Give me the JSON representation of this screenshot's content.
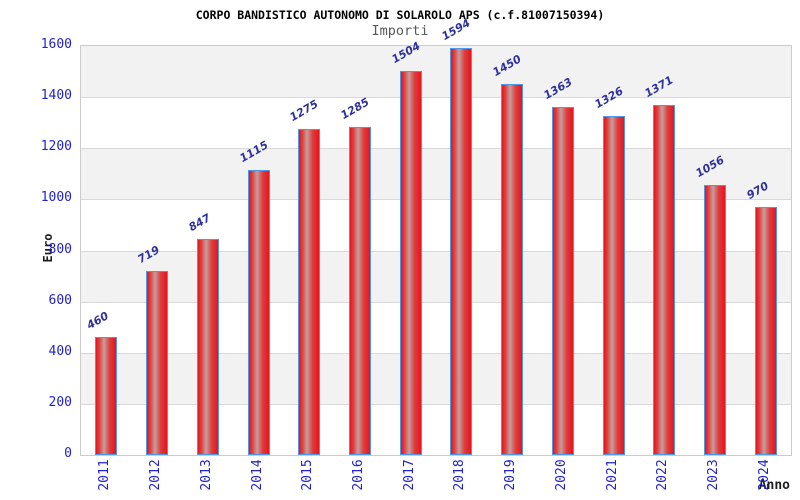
{
  "header": {
    "title": "CORPO BANDISTICO AUTONOMO DI SOLAROLO APS (c.f.81007150394)",
    "subtitle": "Importi"
  },
  "chart_data": {
    "type": "bar",
    "title": "Importi",
    "categories": [
      "2011",
      "2012",
      "2013",
      "2014",
      "2015",
      "2016",
      "2017",
      "2018",
      "2019",
      "2020",
      "2021",
      "2022",
      "2023",
      "2024"
    ],
    "values": [
      460,
      719,
      847,
      1115,
      1275,
      1285,
      1504,
      1594,
      1450,
      1363,
      1326,
      1371,
      1056,
      970
    ],
    "xlabel": "Anno",
    "ylabel": "Euro",
    "ylim": [
      0,
      1600
    ],
    "yticks": [
      0,
      200,
      400,
      600,
      800,
      1000,
      1200,
      1400,
      1600
    ],
    "grid": true,
    "legend_position": "none",
    "colors": {
      "bar_fill_edge": "#e9141c",
      "bar_fill_center": "#c79d9d",
      "bar_border": "#4f97ea",
      "value_label": "#30309c",
      "tick_label": "#2222cc",
      "band_gray": "#f2f2f2",
      "band_white": "#ffffff",
      "gridline": "#d9d9d9",
      "plot_border": "#cccccc",
      "title": "#000000",
      "subtitle": "#595959",
      "axis_title": "#1f1f1f"
    }
  }
}
